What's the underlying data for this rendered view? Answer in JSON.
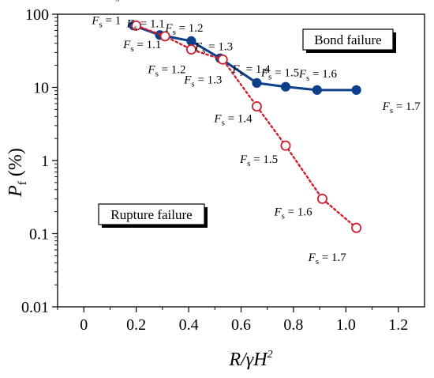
{
  "chart_data": {
    "type": "line",
    "title": "",
    "xlabel": "R/γH",
    "xlabel_superscript": "2",
    "ylabel_main": "P",
    "ylabel_sub": "f",
    "ylabel_unit": " (%)",
    "xlim": [
      -0.1,
      1.3
    ],
    "ylim": [
      0.01,
      100
    ],
    "yscale": "log",
    "grid": false,
    "xticks": [
      0,
      0.2,
      0.4,
      0.6,
      0.8,
      1.0,
      1.2
    ],
    "xtick_labels": [
      "0",
      "0.2",
      "0.4",
      "0.6",
      "0.8",
      "1.0",
      "1.2"
    ],
    "yticks": [
      0.01,
      0.1,
      1,
      10,
      100
    ],
    "ytick_labels": [
      "0.01",
      "0.1",
      "1",
      "10",
      "100"
    ],
    "series": [
      {
        "name": "Bond failure",
        "color": "#0d3f8a",
        "line_style": "solid",
        "marker": "filled-circle",
        "x": [
          0.19,
          0.29,
          0.41,
          0.52,
          0.66,
          0.77,
          0.89,
          1.04
        ],
        "y": [
          70,
          52,
          43,
          25,
          11.5,
          10.2,
          9.2,
          9.2
        ],
        "point_labels": [
          "1",
          "1.1",
          "1.2",
          "1.3",
          "1.4",
          "1.5",
          "1.6",
          "1.7"
        ]
      },
      {
        "name": "Rupture failure",
        "color": "#cc2030",
        "line_style": "dotted",
        "marker": "open-circle",
        "x": [
          0.2,
          0.31,
          0.41,
          0.53,
          0.66,
          0.77,
          0.91,
          1.04
        ],
        "y": [
          70,
          50,
          33,
          24,
          5.5,
          1.6,
          0.3,
          0.12
        ],
        "point_labels": [
          "1",
          "1.1",
          "1.2",
          "1.3",
          "1.4",
          "1.5",
          "1.6",
          "1.7"
        ]
      }
    ],
    "annotation_prefix": "F",
    "annotation_sub": "s",
    "annotation_eq": " = "
  }
}
